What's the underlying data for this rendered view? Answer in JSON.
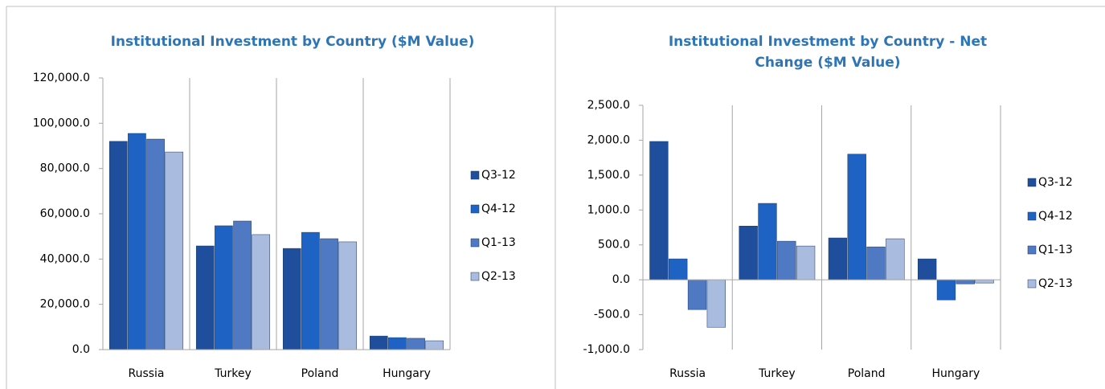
{
  "chart_data": [
    {
      "type": "bar",
      "title": [
        "Institutional Investment by Country ($M Value)"
      ],
      "categories": [
        "Russia",
        "Turkey",
        "Poland",
        "Hungary"
      ],
      "series": [
        {
          "name": "Q3-12",
          "color": "#1f4f9c",
          "values": [
            92000,
            45800,
            44700,
            6000
          ]
        },
        {
          "name": "Q4-12",
          "color": "#1e63c4",
          "values": [
            95500,
            54700,
            51800,
            5300
          ]
        },
        {
          "name": "Q1-13",
          "color": "#4f79c2",
          "values": [
            93000,
            56800,
            49000,
            5000
          ]
        },
        {
          "name": "Q2-13",
          "color": "#a9bcdf",
          "values": [
            87300,
            50800,
            47600,
            3900
          ]
        }
      ],
      "ylim": [
        0,
        120000
      ],
      "yticks": [
        {
          "value": 0,
          "label": "0.0"
        },
        {
          "value": 20000,
          "label": "20,000.0"
        },
        {
          "value": 40000,
          "label": "40,000.0"
        },
        {
          "value": 60000,
          "label": "60,000.0"
        },
        {
          "value": 80000,
          "label": "80,000.0"
        },
        {
          "value": 100000,
          "label": "100,000.0"
        },
        {
          "value": 120000,
          "label": "120,000.0"
        }
      ],
      "grid": "x",
      "legend": "right",
      "negative_tick_color": "#ff0000"
    },
    {
      "type": "bar",
      "title": [
        "Institutional Investment by Country - Net",
        "Change ($M Value)"
      ],
      "categories": [
        "Russia",
        "Turkey",
        "Poland",
        "Hungary"
      ],
      "series": [
        {
          "name": "Q3-12",
          "color": "#1f4f9c",
          "values": [
            1982,
            770,
            600,
            300
          ]
        },
        {
          "name": "Q4-12",
          "color": "#1e63c4",
          "values": [
            300,
            1095,
            1800,
            -288
          ]
        },
        {
          "name": "Q1-13",
          "color": "#4f79c2",
          "values": [
            -426,
            553,
            472,
            -58
          ]
        },
        {
          "name": "Q2-13",
          "color": "#a9bcdf",
          "values": [
            -680,
            484,
            588,
            -46
          ]
        }
      ],
      "ylim": [
        -1000,
        2500
      ],
      "yticks": [
        {
          "value": -1000,
          "label": "-1,000.0"
        },
        {
          "value": -500,
          "label": "-500.0"
        },
        {
          "value": 0,
          "label": "0.0"
        },
        {
          "value": 500,
          "label": "500.0"
        },
        {
          "value": 1000,
          "label": "1,000.0"
        },
        {
          "value": 1500,
          "label": "1,500.0"
        },
        {
          "value": 2000,
          "label": "2,000.0"
        },
        {
          "value": 2500,
          "label": "2,500.0"
        }
      ],
      "grid": "x",
      "legend": "right",
      "negative_tick_color": "#ff0000"
    }
  ]
}
